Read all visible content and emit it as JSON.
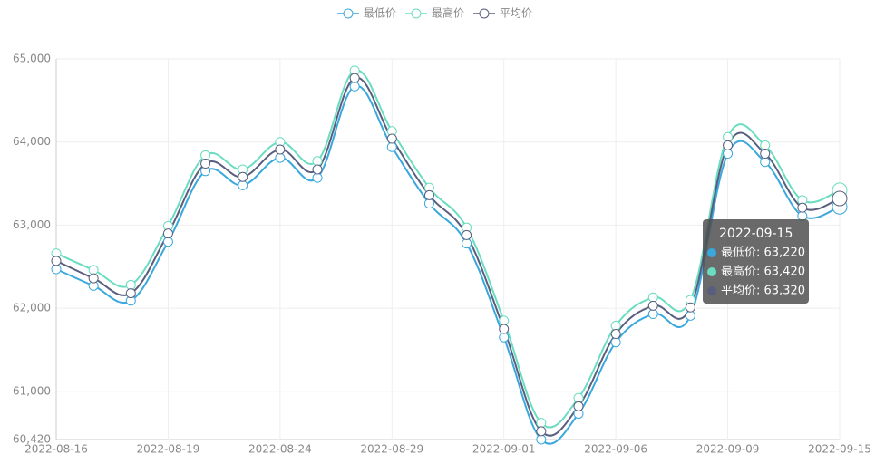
{
  "chart_data": {
    "type": "line",
    "categories": [
      "2022-08-16",
      null,
      null,
      "2022-08-19",
      null,
      null,
      "2022-08-24",
      null,
      null,
      "2022-08-29",
      null,
      null,
      "2022-09-01",
      null,
      null,
      "2022-09-06",
      null,
      null,
      "2022-09-09",
      null,
      null,
      "2022-09-15"
    ],
    "series": [
      {
        "name": "最低价",
        "color": "#3aa8dc",
        "values": [
          62470,
          62270,
          62090,
          62800,
          63650,
          63480,
          63810,
          63570,
          64670,
          63940,
          63260,
          62780,
          61650,
          60420,
          60730,
          61590,
          61930,
          61910,
          63860,
          63760,
          63110,
          63220
        ]
      },
      {
        "name": "最高价",
        "color": "#6adcc0",
        "values": [
          62660,
          62460,
          62280,
          62990,
          63840,
          63670,
          64000,
          63770,
          64860,
          64130,
          63450,
          62970,
          61850,
          60620,
          60920,
          61790,
          62130,
          62100,
          64060,
          63960,
          63300,
          63420
        ]
      },
      {
        "name": "平均价",
        "color": "#5a5e7e",
        "values": [
          62570,
          62360,
          62180,
          62900,
          63740,
          63580,
          63910,
          63670,
          64770,
          64040,
          63360,
          62880,
          61750,
          60520,
          60820,
          61690,
          62030,
          62010,
          63960,
          63860,
          63210,
          63320
        ]
      }
    ],
    "ylim": [
      60420,
      65000
    ],
    "yticks": [
      {
        "value": 60420,
        "label": "60,420"
      },
      {
        "value": 61000,
        "label": "61,000"
      },
      {
        "value": 62000,
        "label": "62,000"
      },
      {
        "value": 63000,
        "label": "63,000"
      },
      {
        "value": 64000,
        "label": "64,000"
      },
      {
        "value": 65000,
        "label": "65,000"
      }
    ],
    "grid": true,
    "legend": "top",
    "tooltip": {
      "title": "2022-09-15",
      "lines": [
        "最低价: 63,220",
        "最高价: 63,420",
        "平均价: 63,320"
      ]
    }
  }
}
